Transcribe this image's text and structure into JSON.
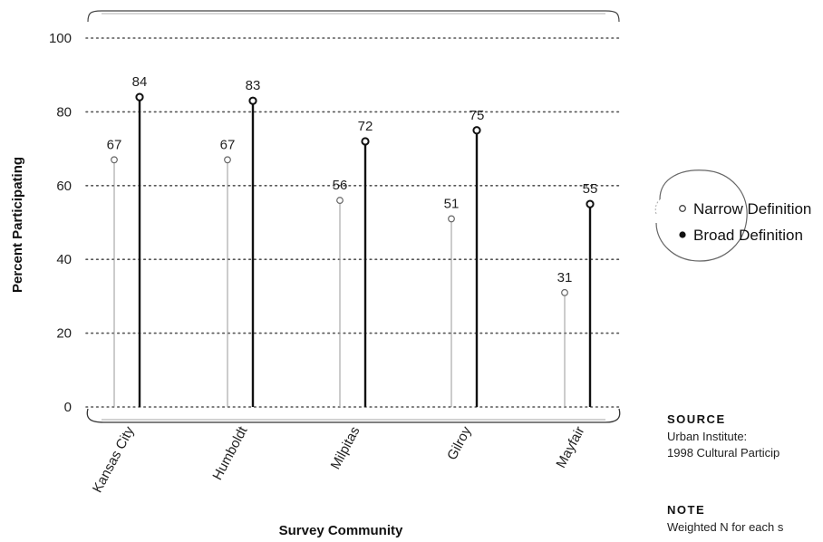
{
  "chart_data": {
    "type": "lollipop",
    "categories": [
      "Kansas City",
      "Humboldt",
      "Milpitas",
      "Gilroy",
      "Mayfair"
    ],
    "series": [
      {
        "name": "Narrow Definition",
        "values": [
          67,
          67,
          56,
          51,
          31
        ],
        "color": "#9a9a9a",
        "marker": "open-circle"
      },
      {
        "name": "Broad Definition",
        "values": [
          84,
          83,
          72,
          75,
          55
        ],
        "color": "#111111",
        "marker": "filled-circle"
      }
    ],
    "value_labels": {
      "narrow": [
        "67",
        "67",
        "56",
        "51",
        "31"
      ],
      "broad": [
        "84",
        "83",
        "72",
        "75",
        "55"
      ]
    },
    "xlabel": "Survey Community",
    "ylabel": "Percent Participating",
    "ylim": [
      0,
      100
    ],
    "yticks": [
      0,
      20,
      40,
      60,
      80,
      100
    ],
    "ytick_labels": [
      "0",
      "20",
      "40",
      "60",
      "80",
      "100"
    ],
    "grid": "horizontal-dotted",
    "legend_position": "right"
  },
  "source": {
    "heading": "SOURCE",
    "lines": [
      "Urban Institute:",
      "1998 Cultural Particip"
    ]
  },
  "note": {
    "heading": "NOTE",
    "lines": [
      "Weighted N for each s"
    ]
  }
}
